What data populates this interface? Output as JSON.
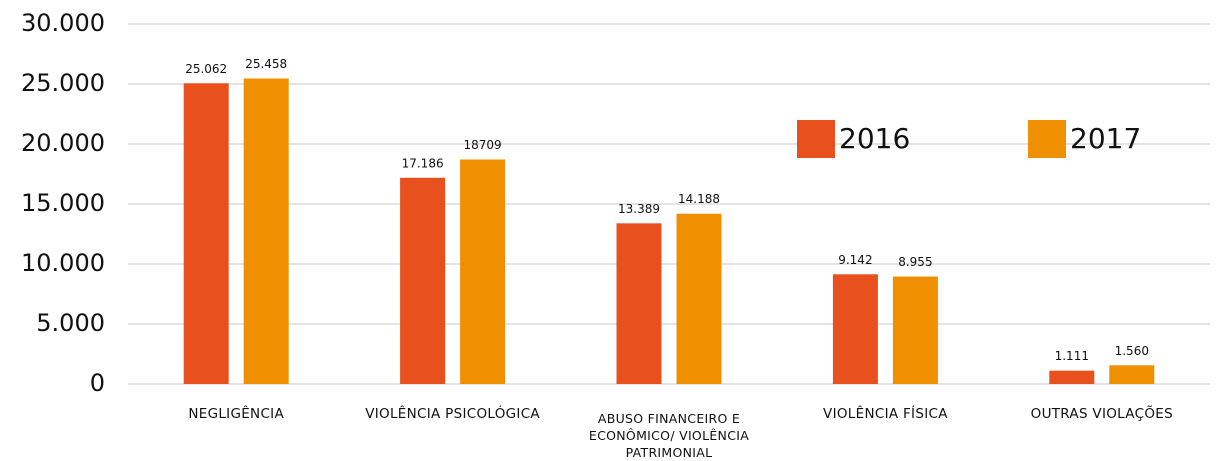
{
  "chart_data": {
    "type": "bar",
    "categories": [
      "NEGLIGÊNCIA",
      "VIOLÊNCIA PSICOLÓGICA",
      "ABUSO FINANCEIRO E ECONÔMICO/ VIOLÊNCIA PATRIMONIAL",
      "VIOLÊNCIA FÍSICA",
      "OUTRAS VIOLAÇÕES"
    ],
    "series": [
      {
        "name": "2016",
        "color": "#e8501e",
        "values": [
          25062,
          17186,
          13389,
          9142,
          1111
        ],
        "value_labels": [
          "25.062",
          "17.186",
          "13.389",
          "9.142",
          "1.111"
        ]
      },
      {
        "name": "2017",
        "color": "#f09000",
        "values": [
          25458,
          18709,
          14188,
          8955,
          1560
        ],
        "value_labels": [
          "25.458",
          "18709",
          "14.188",
          "8.955",
          "1.560"
        ]
      }
    ],
    "ylim": [
      0,
      30000
    ],
    "yticks": [
      0,
      {
        "value": 5000,
        "label": "5.000"
      },
      {
        "value": 10000,
        "label": "10.000"
      },
      {
        "value": 15000,
        "label": "15.000"
      },
      {
        "value": 20000,
        "label": "20.000"
      },
      {
        "value": 25000,
        "label": "25.000"
      },
      {
        "value": 30000,
        "label": "30.000"
      }
    ],
    "grid": true,
    "legend": "top-right"
  }
}
